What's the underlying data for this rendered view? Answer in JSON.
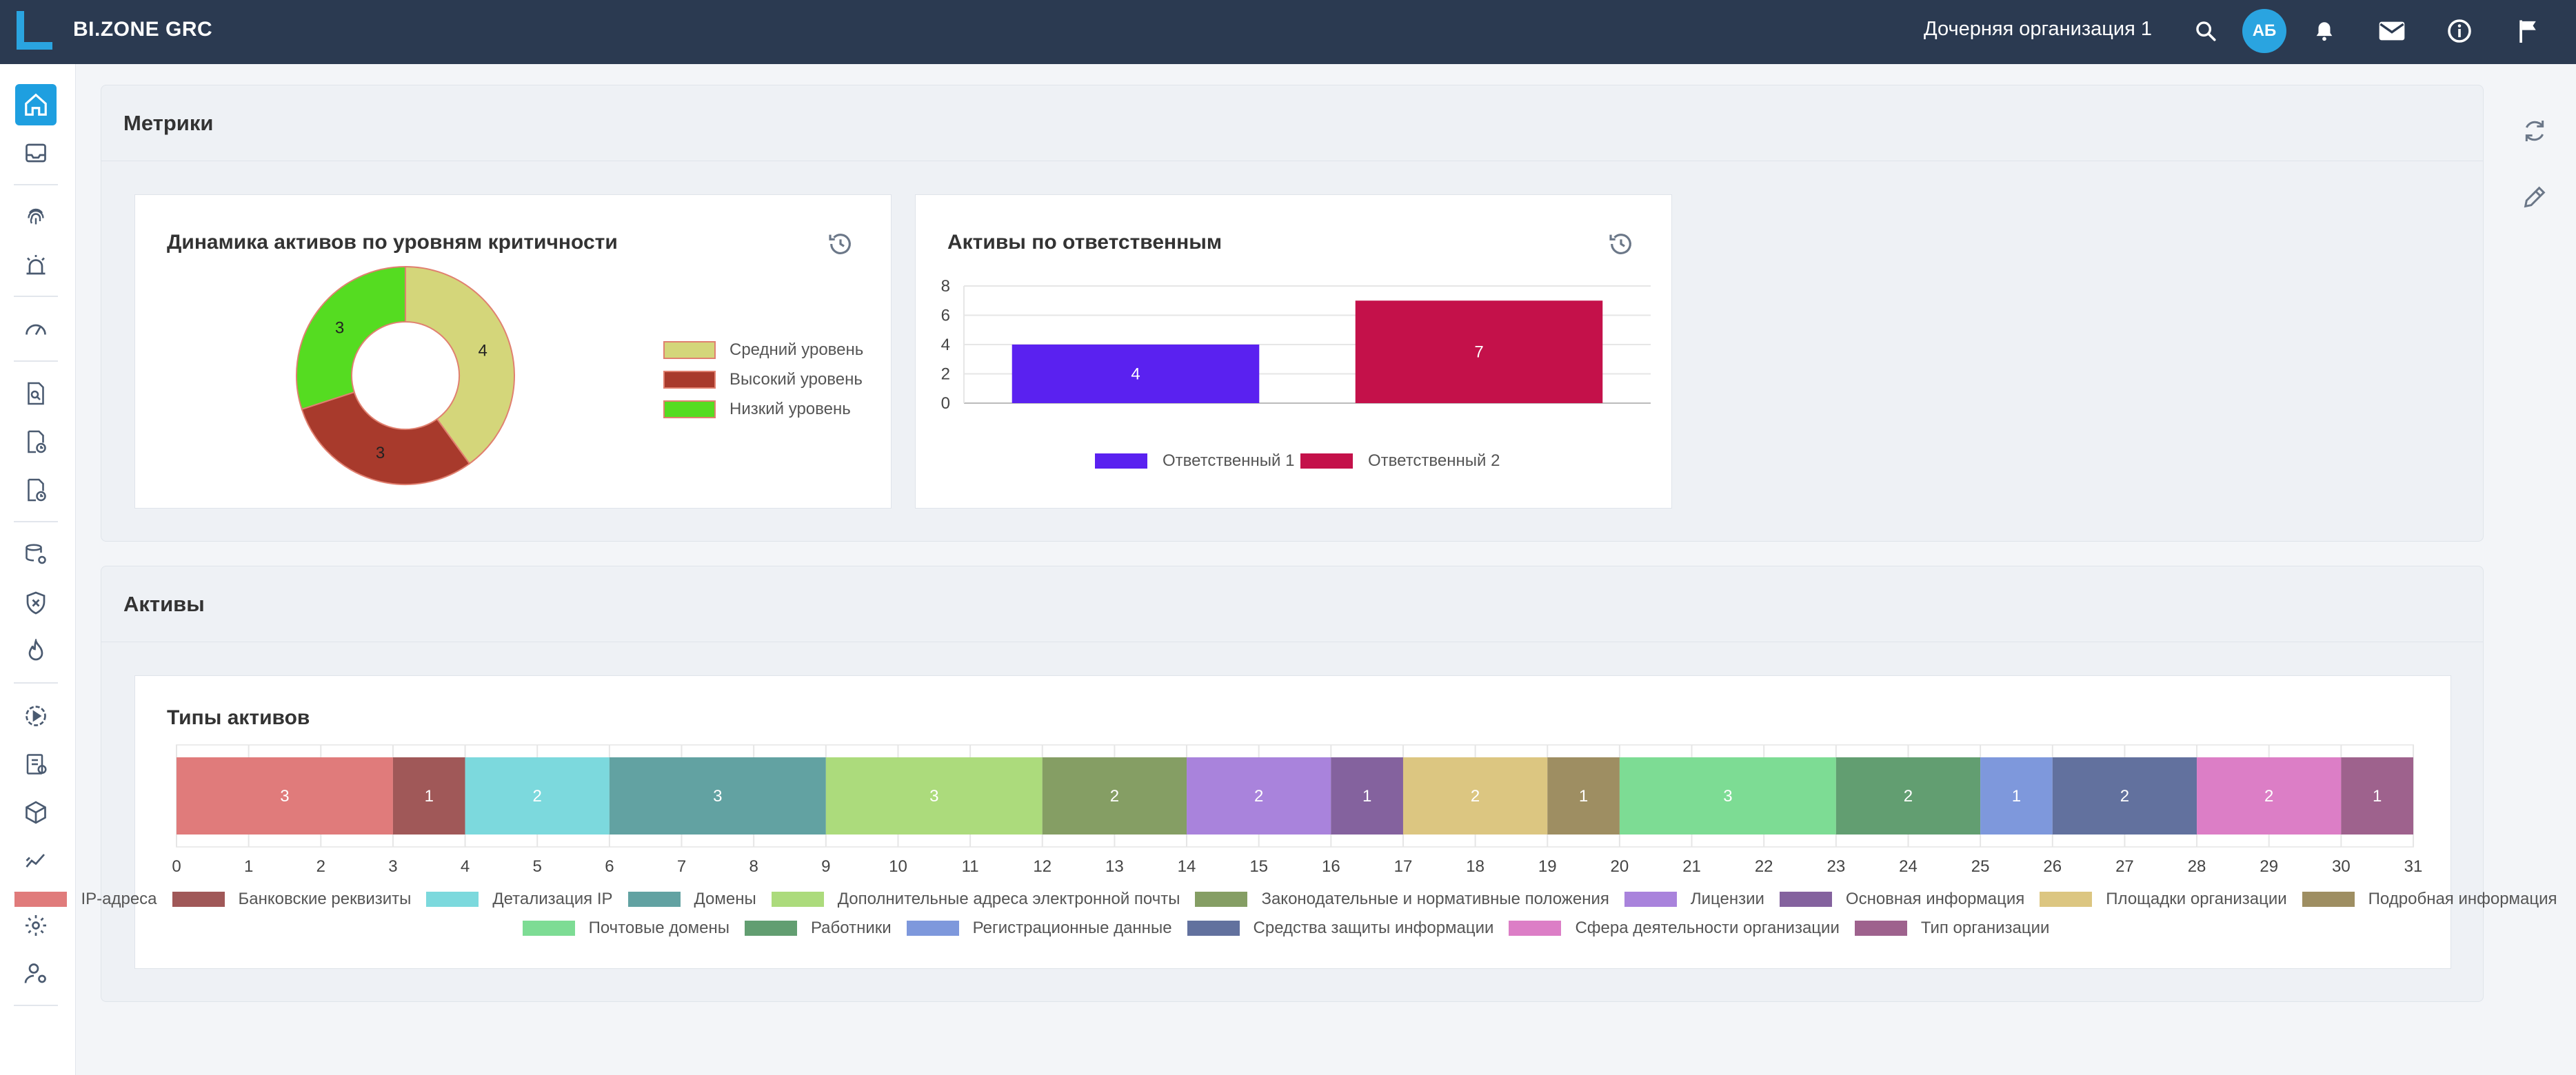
{
  "topbar": {
    "brand": "BI.ZONE GRC",
    "organization": "Дочерняя организация 1",
    "avatar_initials": "АБ",
    "icons": [
      "search-icon",
      "bell-icon",
      "mail-icon",
      "info-icon",
      "flag-icon"
    ]
  },
  "sidebar": {
    "items": [
      "home-icon",
      "inbox-icon",
      "fingerprint-icon",
      "alarm-icon",
      "speedometer-icon",
      "document-search-icon",
      "document-clock-icon",
      "document-time-icon",
      "database-settings-icon",
      "shield-x-icon",
      "fire-icon",
      "play-circle-icon",
      "checklist-icon",
      "cube-icon",
      "sparkline-icon",
      "gear-icon",
      "user-gear-icon"
    ],
    "active": "home-icon"
  },
  "right_rail": {
    "icons": [
      "refresh-icon",
      "pencil-icon"
    ]
  },
  "metrics": {
    "title": "Метрики",
    "card1": {
      "title": "Динамика активов по уровням критичности"
    },
    "card2": {
      "title": "Активы по ответственным"
    }
  },
  "assets": {
    "title": "Активы",
    "card": {
      "title": "Типы активов"
    }
  },
  "chart_data": [
    {
      "type": "pie",
      "title": "Динамика активов по уровням критичности",
      "labels": [
        "Средний уровень",
        "Высокий уровень",
        "Низкий уровень"
      ],
      "values": [
        4,
        3,
        3
      ],
      "colors": [
        "#d4d67a",
        "#a83a2c",
        "#55dc21"
      ],
      "legend": "right"
    },
    {
      "type": "bar",
      "title": "Активы по ответственным",
      "categories": [
        "Ответственный 1",
        "Ответственный 2"
      ],
      "values": [
        4,
        7
      ],
      "colors": [
        "#5a21f0",
        "#c4114a"
      ],
      "ylim": [
        0,
        8
      ],
      "yticks": [
        0,
        2,
        4,
        6,
        8
      ],
      "legend": "bottom",
      "grid": true
    },
    {
      "type": "bar",
      "orientation": "horizontal-stacked",
      "title": "Типы активов",
      "series": [
        {
          "name": "IP-адреса",
          "value": 3,
          "color": "#e07b7b"
        },
        {
          "name": "Банковские реквизиты",
          "value": 1,
          "color": "#a05858"
        },
        {
          "name": "Детализация IP",
          "value": 2,
          "color": "#7cd9dd"
        },
        {
          "name": "Домены",
          "value": 3,
          "color": "#62a2a2"
        },
        {
          "name": "Дополнительные адреса электронной почты",
          "value": 3,
          "color": "#acdb7c"
        },
        {
          "name": "Законодательные и нормативные положения",
          "value": 2,
          "color": "#859e64"
        },
        {
          "name": "Лицензии",
          "value": 2,
          "color": "#a983dc"
        },
        {
          "name": "Основная информация",
          "value": 1,
          "color": "#84629e"
        },
        {
          "name": "Площадки организации",
          "value": 2,
          "color": "#dcc681"
        },
        {
          "name": "Подробная информация",
          "value": 1,
          "color": "#9e8e62"
        },
        {
          "name": "Почтовые домены",
          "value": 3,
          "color": "#7ddc94"
        },
        {
          "name": "Работники",
          "value": 2,
          "color": "#629e71"
        },
        {
          "name": "Регистрационные данные",
          "value": 1,
          "color": "#7e98dc"
        },
        {
          "name": "Средства защиты информации",
          "value": 2,
          "color": "#62719e"
        },
        {
          "name": "Сфера деятельности организации",
          "value": 2,
          "color": "#dc7ec6"
        },
        {
          "name": "Тип организации",
          "value": 1,
          "color": "#9e628d"
        }
      ],
      "xlim": [
        0,
        31
      ],
      "xticks": [
        0,
        1,
        2,
        3,
        4,
        5,
        6,
        7,
        8,
        9,
        10,
        11,
        12,
        13,
        14,
        15,
        16,
        17,
        18,
        19,
        20,
        21,
        22,
        23,
        24,
        25,
        26,
        27,
        28,
        29,
        30,
        31
      ],
      "legend": "bottom",
      "grid": true
    }
  ]
}
